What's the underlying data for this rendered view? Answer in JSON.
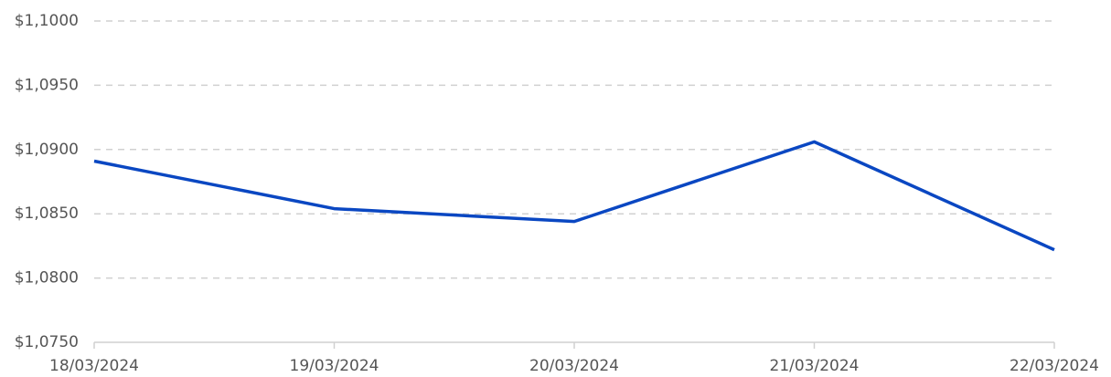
{
  "chart_data": {
    "type": "line",
    "categories": [
      "18/03/2024",
      "19/03/2024",
      "20/03/2024",
      "21/03/2024",
      "22/03/2024"
    ],
    "values": [
      1.0891,
      1.0854,
      1.0844,
      1.0906,
      1.0822
    ],
    "color": "#0a47c2",
    "ylim": [
      1.075,
      1.1
    ],
    "yticks": [
      {
        "value": 1.075,
        "label": "$1,0750"
      },
      {
        "value": 1.08,
        "label": "$1,0800"
      },
      {
        "value": 1.085,
        "label": "$1,0850"
      },
      {
        "value": 1.09,
        "label": "$1,0900"
      },
      {
        "value": 1.095,
        "label": "$1,0950"
      },
      {
        "value": 1.1,
        "label": "$1,1000"
      }
    ],
    "grid": true
  }
}
